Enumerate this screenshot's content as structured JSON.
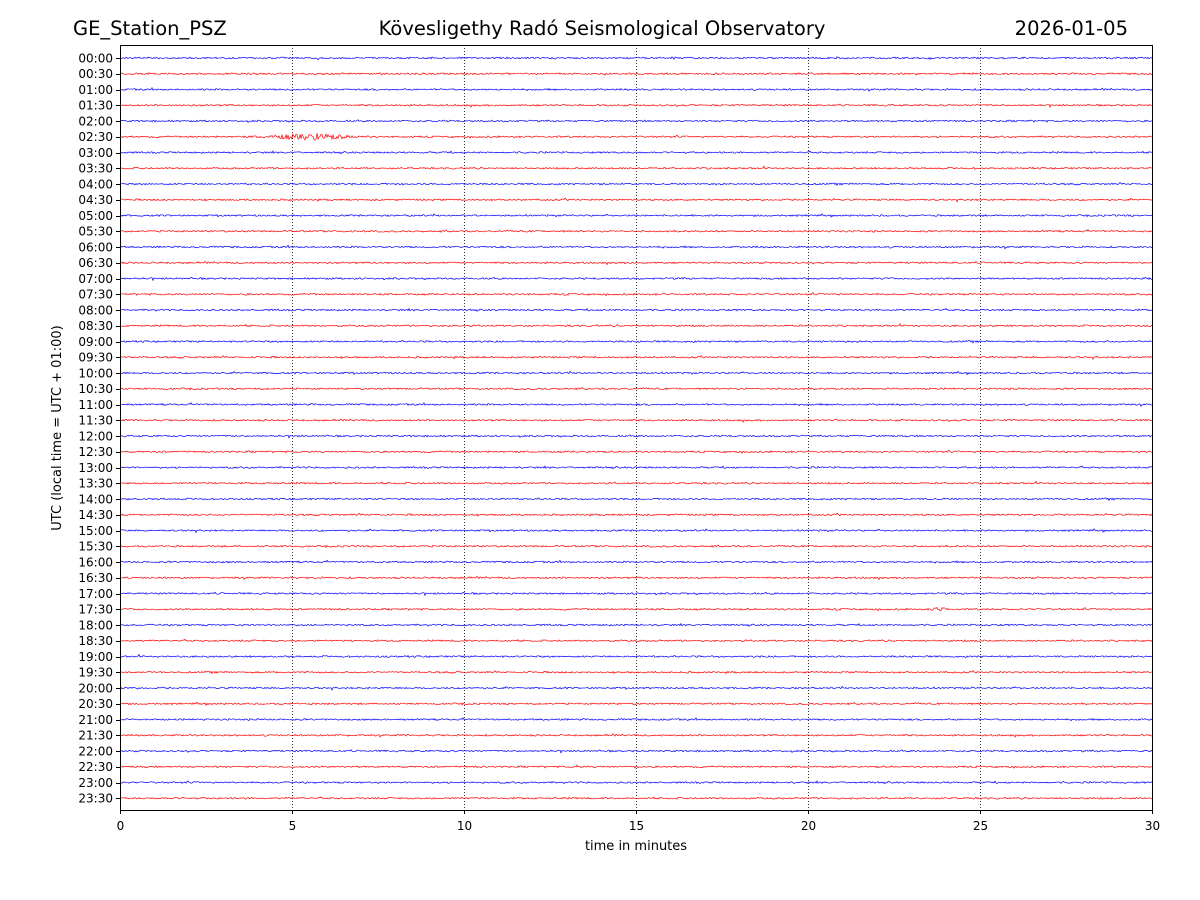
{
  "header": {
    "station": "GE_Station_PSZ",
    "observatory": "Kövesligethy Radó Seismological Observatory",
    "date": "2026-01-05"
  },
  "chart_data": {
    "type": "line",
    "title": "Kövesligethy Radó Seismological Observatory",
    "xlabel": "time in minutes",
    "ylabel": "UTC (local time = UTC + 01:00)",
    "xlim": [
      0,
      30
    ],
    "x_ticks": [
      "0",
      "5",
      "10",
      "15",
      "20",
      "25",
      "30"
    ],
    "grid": "vertical dotted at 5-minute intervals",
    "series_colors": [
      "#0000ff",
      "#ff0000"
    ],
    "row_labels": [
      "00:00",
      "00:30",
      "01:00",
      "01:30",
      "02:00",
      "02:30",
      "03:00",
      "03:30",
      "04:00",
      "04:30",
      "05:00",
      "05:30",
      "06:00",
      "06:30",
      "07:00",
      "07:30",
      "08:00",
      "08:30",
      "09:00",
      "09:30",
      "10:00",
      "10:30",
      "11:00",
      "11:30",
      "12:00",
      "12:30",
      "13:00",
      "13:30",
      "14:00",
      "14:30",
      "15:00",
      "15:30",
      "16:00",
      "16:30",
      "17:00",
      "17:30",
      "18:00",
      "18:30",
      "19:00",
      "19:30",
      "20:00",
      "20:30",
      "21:00",
      "21:30",
      "22:00",
      "22:30",
      "23:00",
      "23:30"
    ],
    "noise_level": 1,
    "events": [
      {
        "row": "02:30",
        "start_min": 3.7,
        "end_min": 7.3,
        "peak_min": 5.6,
        "amplitude": 4
      },
      {
        "row": "17:30",
        "start_min": 23.3,
        "end_min": 24.3,
        "peak_min": 23.8,
        "amplitude": 2.5
      },
      {
        "row": "22:30",
        "start_min": 13.2,
        "end_min": 13.4,
        "peak_min": 13.3,
        "amplitude": 2.5
      },
      {
        "row": "22:30",
        "start_min": 14.8,
        "end_min": 15.1,
        "peak_min": 14.95,
        "amplitude": 2
      }
    ]
  }
}
